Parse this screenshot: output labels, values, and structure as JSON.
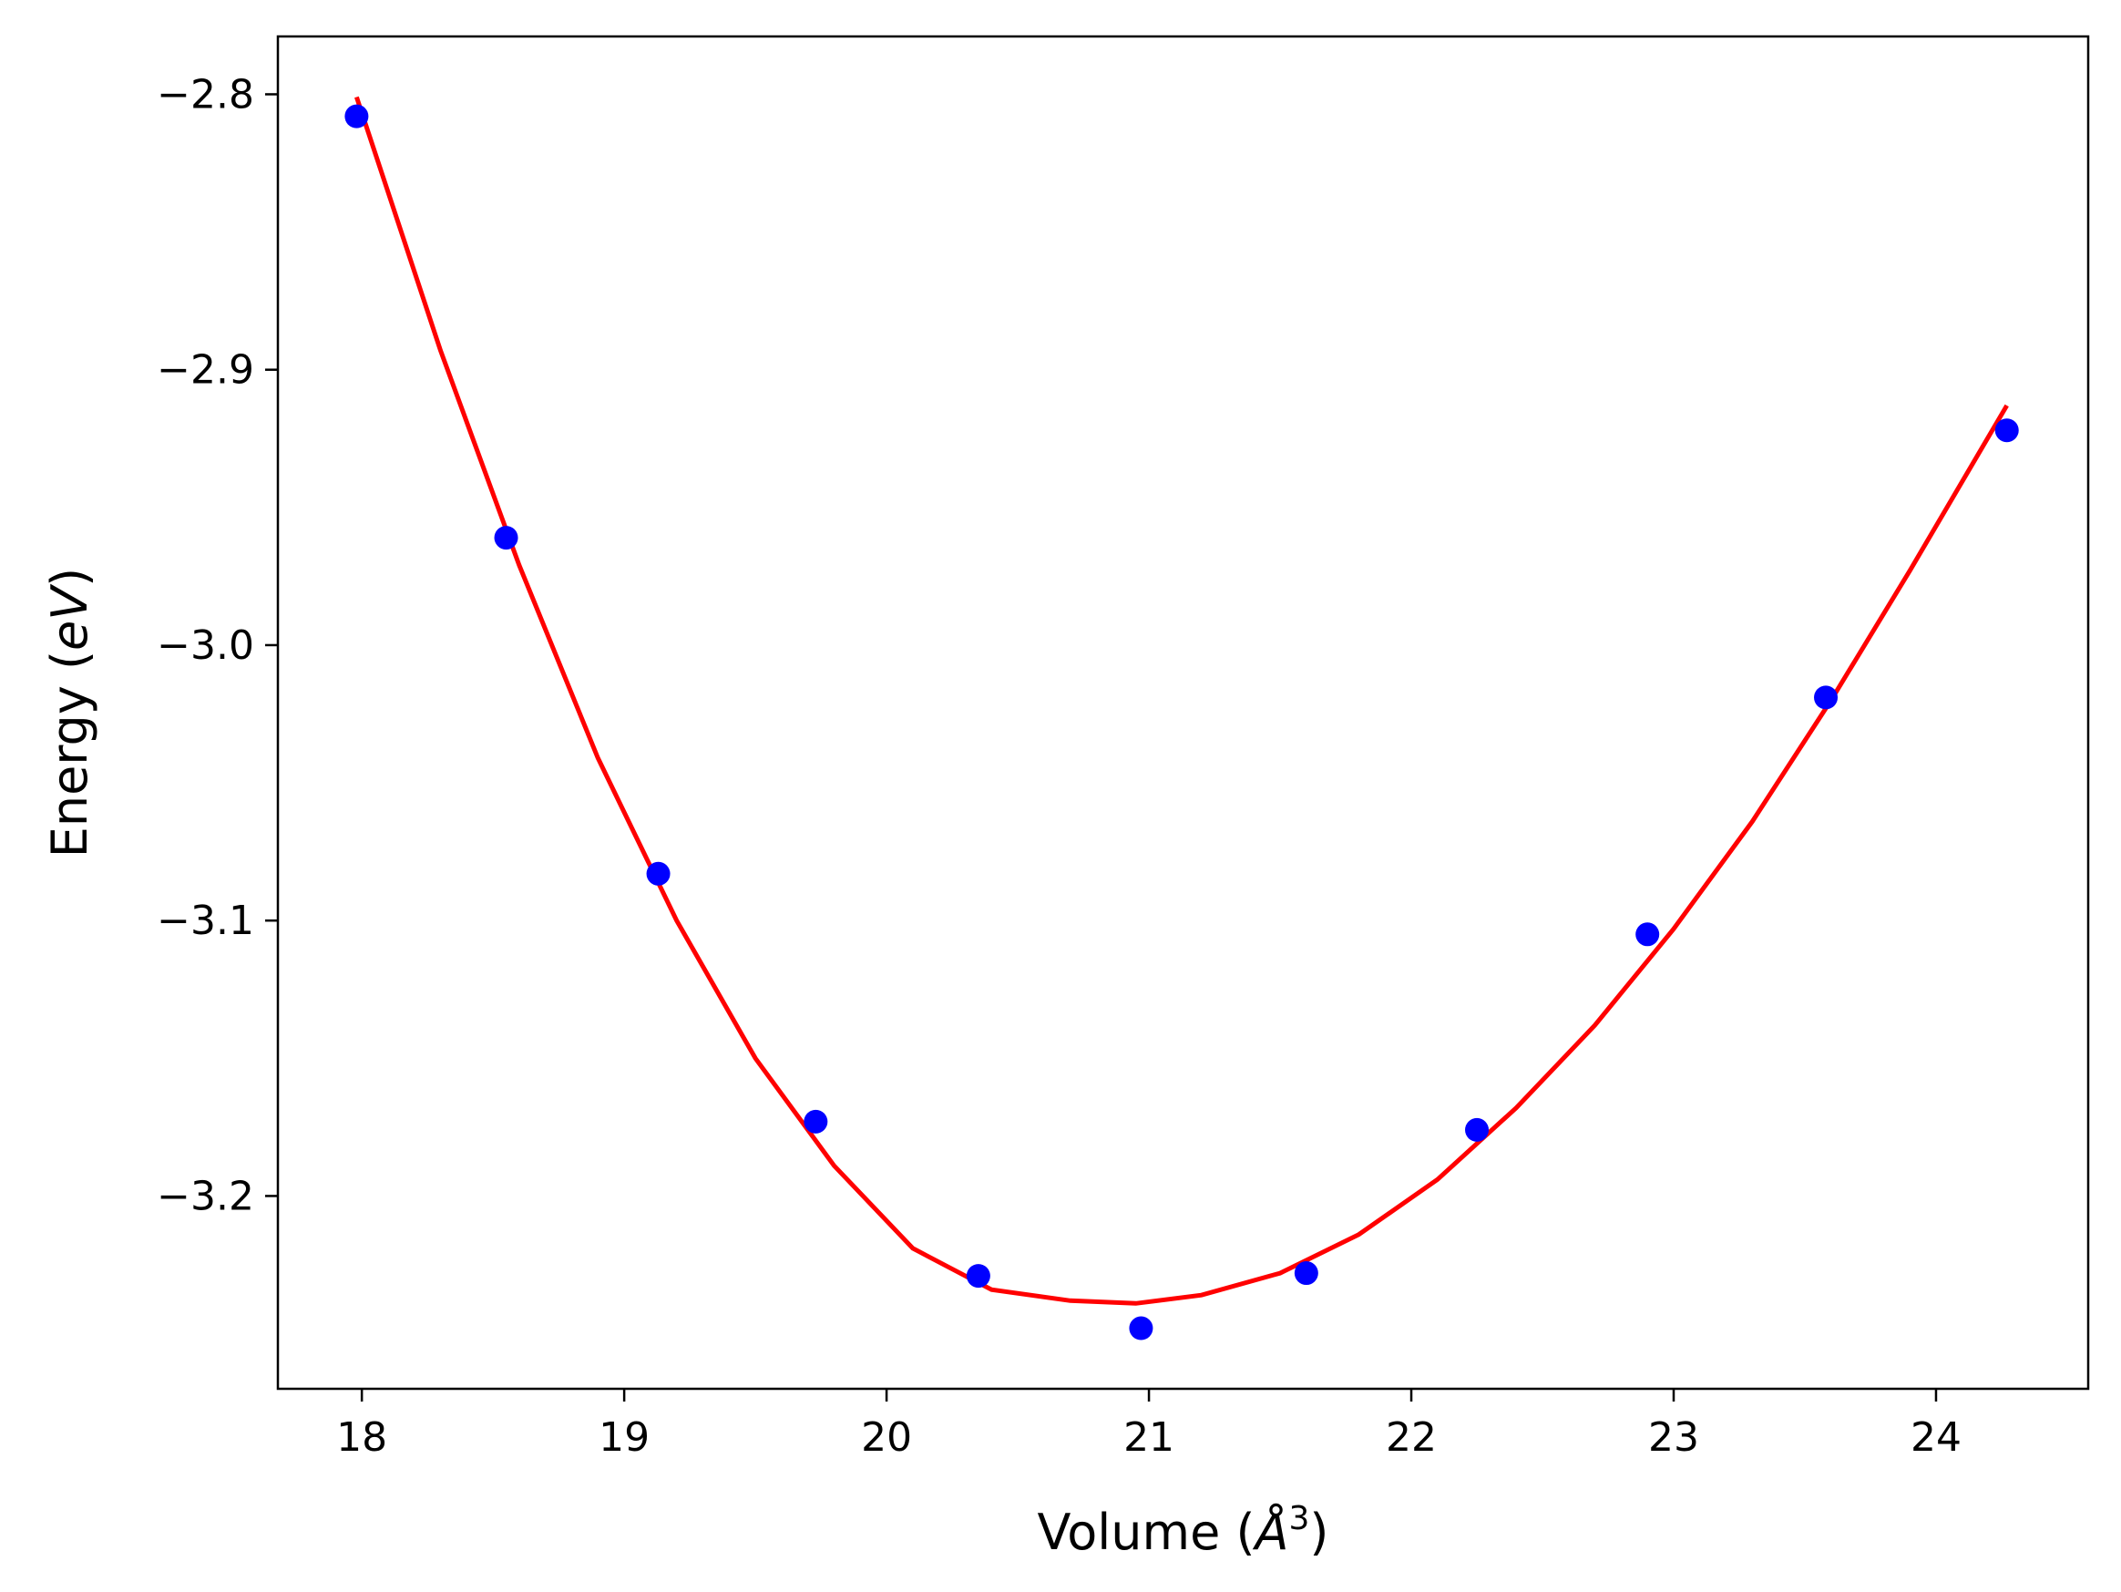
{
  "chart_data": {
    "type": "scatter",
    "title": "",
    "xlabel": "Volume (Å³)",
    "xlabel_parts": {
      "text": "Volume (",
      "symbol": "Å",
      "superscript": "3",
      "close": ")"
    },
    "ylabel": "Energy (eV)",
    "ylabel_parts": {
      "text": "Energy (",
      "unit": "eV",
      "close": ")"
    },
    "xlim": [
      17.68,
      24.58
    ],
    "ylim": [
      -3.27,
      -2.779
    ],
    "x_ticks": [
      18,
      19,
      20,
      21,
      22,
      23,
      24
    ],
    "x_tick_labels": [
      "18",
      "19",
      "20",
      "21",
      "22",
      "23",
      "24"
    ],
    "y_ticks": [
      -2.8,
      -2.9,
      -3.0,
      -3.1,
      -3.2
    ],
    "y_tick_labels": [
      "−2.8",
      "−2.9",
      "−3.0",
      "−3.1",
      "−3.2"
    ],
    "grid": false,
    "series": [
      {
        "kind": "scatter",
        "color": "#0000ff",
        "x": [
          17.98,
          18.55,
          19.13,
          19.73,
          20.35,
          20.97,
          21.6,
          22.25,
          22.9,
          23.58,
          24.27
        ],
        "y": [
          -2.808,
          -2.961,
          -3.083,
          -3.173,
          -3.229,
          -3.248,
          -3.228,
          -3.176,
          -3.105,
          -3.019,
          -2.922
        ]
      },
      {
        "kind": "line",
        "color": "#ff0000",
        "x": [
          17.98,
          18.3,
          18.6,
          18.9,
          19.2,
          19.5,
          19.8,
          20.1,
          20.4,
          20.7,
          20.95,
          21.2,
          21.5,
          21.8,
          22.1,
          22.4,
          22.7,
          23.0,
          23.3,
          23.6,
          23.9,
          24.27
        ],
        "y": [
          -2.801,
          -2.893,
          -2.971,
          -3.041,
          -3.1,
          -3.15,
          -3.189,
          -3.219,
          -3.234,
          -3.238,
          -3.239,
          -3.236,
          -3.228,
          -3.214,
          -3.194,
          -3.168,
          -3.138,
          -3.103,
          -3.064,
          -3.02,
          -2.973,
          -2.913
        ]
      }
    ]
  }
}
